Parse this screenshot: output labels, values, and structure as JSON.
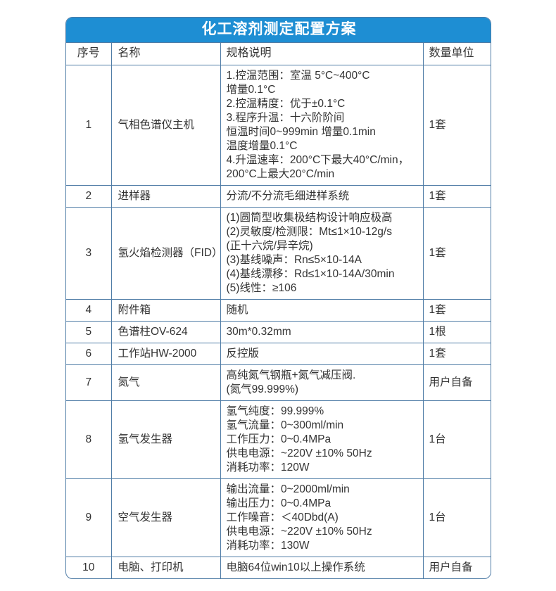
{
  "colors": {
    "header_blue": "#1e8ed3",
    "border": "#4f7ca6",
    "text": "#333333"
  },
  "table": {
    "title": "化工溶剂测定配置方案",
    "columns": [
      "序号",
      "名称",
      "规格说明",
      "数量单位"
    ],
    "rows": [
      {
        "no": "1",
        "name": "气相色谱仪主机",
        "spec": "1.控温范围：室温 5°C~400°C\n增量0.1°C\n2.控温精度：优于±0.1°C\n3.程序升温：十六阶阶间\n恒温时间0~999min 增量0.1min\n温度增量0.1°C\n4.升温速率：200°C下最大40°C/min，\n200°C上最大20°C/min",
        "qty": "1套"
      },
      {
        "no": "2",
        "name": "进样器",
        "spec": "分流/不分流毛细进样系统",
        "qty": "1套"
      },
      {
        "no": "3",
        "name": "氢火焰检测器（FID）",
        "spec": "(1)圆筒型收集极结构设计响应极高\n(2)灵敏度/检测限：Mt≤1×10-12g/s\n(正十六烷/异辛烷)\n(3)基线噪声：Rn≤5×10-14A\n(4)基线漂移：Rd≤1×10-14A/30min\n(5)线性：≥106",
        "qty": "1套"
      },
      {
        "no": "4",
        "name": "附件箱",
        "spec": "随机",
        "qty": "1套"
      },
      {
        "no": "5",
        "name": "色谱柱OV-624",
        "spec": "30m*0.32mm",
        "qty": "1根"
      },
      {
        "no": "6",
        "name": "工作站HW-2000",
        "spec": "反控版",
        "qty": "1套"
      },
      {
        "no": "7",
        "name": "氮气",
        "spec": "高纯氮气钢瓶+氮气减压阀.\n(氮气99.999%)",
        "qty": "用户自备"
      },
      {
        "no": "8",
        "name": "氢气发生器",
        "spec": "氢气纯度：99.999%\n氢气流量：0~300ml/min\n工作压力：0~0.4MPa\n供电电源：~220V ±10% 50Hz\n消耗功率：120W",
        "qty": "1台"
      },
      {
        "no": "9",
        "name": "空气发生器",
        "spec": "输出流量：0~2000ml/min\n输出压力：0~0.4MPa\n工作噪音：＜40Dbd(A)\n供电电源：~220V ±10% 50Hz\n消耗功率：130W",
        "qty": "1台"
      },
      {
        "no": "10",
        "name": "电脑、打印机",
        "spec": "电脑64位win10以上操作系统",
        "qty": "用户自备"
      }
    ]
  }
}
